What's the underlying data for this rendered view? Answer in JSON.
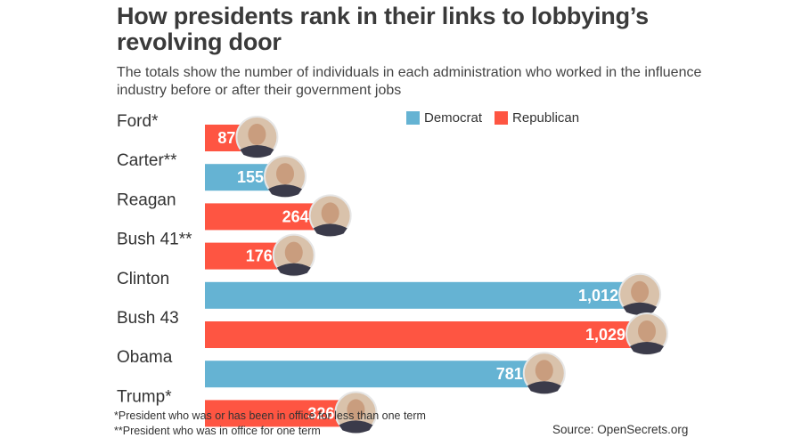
{
  "title": "How presidents rank in their links to lobbying’s revolving door",
  "subtitle": "The totals show the number of individuals in each administration who worked in the influence industry before or after their government jobs",
  "legend": [
    {
      "label": "Democrat",
      "color": "#65b3d3"
    },
    {
      "label": "Republican",
      "color": "#fe5542"
    }
  ],
  "footnotes": [
    "*President who was or has been in office for less than one term",
    "**President who was in office for one term"
  ],
  "source": "Source: OpenSecrets.org",
  "chart_data": {
    "type": "bar",
    "orientation": "horizontal",
    "title": "How presidents rank in their links to lobbying’s revolving door",
    "xlabel": "",
    "ylabel": "",
    "xlim": [
      0,
      1029
    ],
    "grid": false,
    "legend_position": "top-right",
    "categories": [
      "Ford*",
      "Carter**",
      "Reagan",
      "Bush 41**",
      "Clinton",
      "Bush 43",
      "Obama",
      "Trump*"
    ],
    "values": [
      87,
      155,
      264,
      176,
      1012,
      1029,
      781,
      326
    ],
    "value_labels": [
      "87",
      "155",
      "264",
      "176",
      "1,012",
      "1,029",
      "781",
      "326"
    ],
    "party": [
      "Republican",
      "Democrat",
      "Republican",
      "Republican",
      "Democrat",
      "Republican",
      "Democrat",
      "Republican"
    ],
    "colors": {
      "Democrat": "#65b3d3",
      "Republican": "#fe5542"
    }
  }
}
